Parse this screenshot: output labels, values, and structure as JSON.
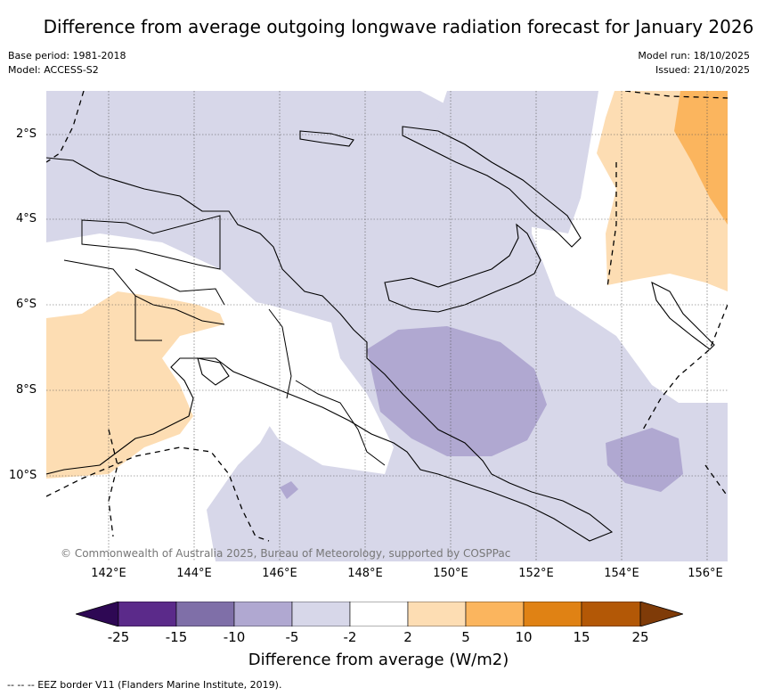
{
  "title": "Difference from average outgoing longwave radiation forecast for January 2026",
  "meta": {
    "base_period": "Base period: 1981-2018",
    "model": "Model: ACCESS-S2",
    "model_run": "Model run: 18/10/2025",
    "issued": "Issued: 21/10/2025"
  },
  "axes": {
    "lat_labels": [
      "2°S",
      "4°S",
      "6°S",
      "8°S",
      "10°S"
    ],
    "lon_labels": [
      "142°E",
      "144°E",
      "146°E",
      "148°E",
      "150°E",
      "152°E",
      "154°E",
      "156°E"
    ]
  },
  "credit": "© Commonwealth of Australia 2025, Bureau of Meteorology, supported by COSPPac",
  "colorbar": {
    "title": "Difference from average (W/m2)",
    "tick_labels": [
      "-25",
      "-15",
      "-10",
      "-5",
      "-2",
      "2",
      "5",
      "10",
      "15",
      "25"
    ],
    "colors": [
      "#2e0854",
      "#5b2a8a",
      "#7f6fa8",
      "#b0a8d1",
      "#d7d7e9",
      "#ffffff",
      "#fdddb3",
      "#fbb55e",
      "#e08214",
      "#b35806",
      "#7f3b08"
    ]
  },
  "legend_text": "-- -- -- EEZ border V11 (Flanders Marine Institute, 2019)."
}
